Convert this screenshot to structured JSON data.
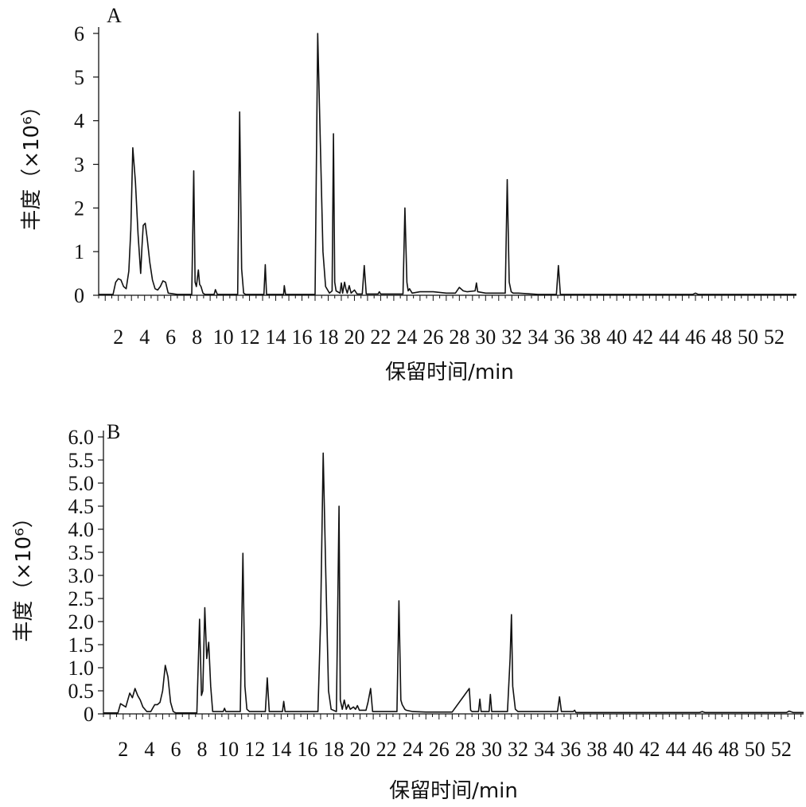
{
  "chart_data": [
    {
      "panel": "A",
      "type": "line",
      "xlabel": "保留时间/min",
      "ylabel": "丰度（×10⁶）",
      "ylim": [
        0,
        6
      ],
      "yticks": [
        0,
        1,
        2,
        3,
        4,
        5,
        6
      ],
      "ytick_labels": [
        "0",
        "1",
        "2",
        "3",
        "4",
        "5",
        "6"
      ],
      "xlim": [
        0.5,
        53.7
      ],
      "xticks": [
        2,
        4,
        6,
        8,
        10,
        12,
        14,
        16,
        18,
        20,
        22,
        24,
        26,
        28,
        30,
        32,
        34,
        36,
        38,
        40,
        42,
        44,
        46,
        48,
        50,
        52
      ],
      "xtick_labels": [
        "2",
        "4",
        "6",
        "8",
        "10",
        "12",
        "14",
        "16",
        "18",
        "20",
        "22",
        "24",
        "26",
        "28",
        "30",
        "32",
        "34",
        "36",
        "38",
        "40",
        "42",
        "44",
        "46",
        "48",
        "50",
        "52"
      ],
      "series": [
        {
          "x": [
            0.5,
            1.6,
            1.8,
            2.0,
            2.2,
            2.4,
            2.6,
            2.8,
            2.95,
            3.1,
            3.3,
            3.5,
            3.7,
            3.8,
            3.9,
            4.05,
            4.2,
            4.4,
            4.6,
            4.8,
            5.0,
            5.2,
            5.4,
            5.6,
            5.8,
            6.5,
            7.6,
            7.75,
            7.85,
            7.95,
            8.1,
            8.2,
            8.3,
            8.45,
            8.6,
            9.3,
            9.4,
            9.55,
            11.1,
            11.25,
            11.4,
            11.55,
            11.7,
            13.1,
            13.2,
            13.3,
            14.6,
            14.65,
            14.75,
            17.0,
            17.2,
            17.4,
            17.6,
            17.8,
            18.1,
            18.3,
            18.4,
            18.5,
            18.6,
            18.9,
            19.0,
            19.1,
            19.25,
            19.35,
            19.45,
            19.6,
            19.75,
            20.0,
            20.2,
            20.6,
            20.75,
            20.9,
            21.8,
            21.9,
            22.0,
            23.7,
            23.85,
            24.0,
            24.1,
            24.2,
            24.4,
            25.0,
            26.0,
            27.0,
            27.7,
            28.0,
            28.3,
            28.6,
            29.2,
            29.3,
            29.4,
            30.0,
            31.5,
            31.65,
            31.8,
            31.95,
            32.1,
            32.5,
            34.0,
            35.4,
            35.55,
            35.7,
            36.0,
            38.0,
            42.0,
            45.8,
            46.0,
            46.2,
            48.0,
            53.7
          ],
          "values": [
            0.02,
            0.02,
            0.3,
            0.38,
            0.35,
            0.2,
            0.15,
            0.55,
            1.5,
            3.38,
            2.6,
            1.4,
            0.5,
            1.1,
            1.6,
            1.65,
            1.3,
            0.75,
            0.35,
            0.15,
            0.12,
            0.2,
            0.33,
            0.3,
            0.05,
            0.02,
            0.02,
            2.85,
            0.3,
            0.2,
            0.58,
            0.25,
            0.2,
            0.05,
            0.02,
            0.02,
            0.13,
            0.02,
            0.02,
            4.2,
            0.6,
            0.05,
            0.02,
            0.02,
            0.7,
            0.02,
            0.02,
            0.22,
            0.02,
            0.02,
            6.0,
            3.5,
            1.0,
            0.2,
            0.05,
            0.1,
            3.7,
            0.3,
            0.1,
            0.05,
            0.28,
            0.05,
            0.3,
            0.15,
            0.05,
            0.22,
            0.05,
            0.12,
            0.03,
            0.03,
            0.68,
            0.03,
            0.03,
            0.08,
            0.03,
            0.03,
            2.0,
            0.3,
            0.1,
            0.15,
            0.05,
            0.08,
            0.08,
            0.05,
            0.05,
            0.18,
            0.1,
            0.08,
            0.1,
            0.28,
            0.08,
            0.05,
            0.05,
            2.65,
            0.3,
            0.08,
            0.05,
            0.05,
            0.02,
            0.02,
            0.68,
            0.02,
            0.02,
            0.02,
            0.02,
            0.02,
            0.05,
            0.02,
            0.02,
            0.02
          ]
        }
      ]
    },
    {
      "panel": "B",
      "type": "line",
      "xlabel": "保留时间/min",
      "ylabel": "丰度（×10⁶）",
      "ylim": [
        0,
        6
      ],
      "yticks": [
        0,
        0.5,
        1.0,
        1.5,
        2.0,
        2.5,
        3.0,
        3.5,
        4.0,
        4.5,
        5.0,
        5.5,
        6.0
      ],
      "ytick_labels": [
        "0",
        "0.5",
        "1.0",
        "1.5",
        "2.0",
        "2.5",
        "3.0",
        "3.5",
        "4.0",
        "4.5",
        "5.0",
        "5.5",
        "6.0"
      ],
      "xlim": [
        0.5,
        53.7
      ],
      "xticks": [
        2,
        4,
        6,
        8,
        10,
        12,
        14,
        16,
        18,
        20,
        22,
        24,
        26,
        28,
        30,
        32,
        34,
        36,
        38,
        40,
        42,
        44,
        46,
        48,
        50,
        52
      ],
      "xtick_labels": [
        "2",
        "4",
        "6",
        "8",
        "10",
        "12",
        "14",
        "16",
        "18",
        "20",
        "22",
        "24",
        "26",
        "28",
        "30",
        "32",
        "34",
        "36",
        "38",
        "40",
        "42",
        "44",
        "46",
        "48",
        "50",
        "52"
      ],
      "series": [
        {
          "x": [
            0.5,
            1.6,
            1.8,
            2.2,
            2.5,
            2.7,
            2.9,
            3.1,
            3.3,
            3.5,
            3.8,
            4.1,
            4.4,
            4.6,
            4.8,
            5.0,
            5.2,
            5.4,
            5.6,
            5.8,
            6.0,
            6.5,
            7.6,
            7.8,
            7.95,
            8.05,
            8.2,
            8.35,
            8.5,
            8.65,
            8.8,
            9.6,
            9.7,
            9.8,
            10.9,
            11.1,
            11.25,
            11.4,
            11.6,
            12.8,
            12.95,
            13.1,
            14.1,
            14.2,
            14.3,
            16.8,
            17.0,
            17.2,
            17.4,
            17.6,
            17.8,
            18.2,
            18.4,
            18.5,
            18.65,
            18.8,
            18.95,
            19.1,
            19.25,
            19.5,
            19.65,
            19.8,
            19.95,
            20.3,
            20.45,
            20.6,
            20.8,
            20.95,
            21.1,
            22.8,
            22.95,
            23.1,
            23.2,
            23.4,
            23.5,
            24.0,
            25.0,
            26.0,
            27.0,
            28.3,
            28.4,
            28.5,
            29.0,
            29.1,
            29.2,
            29.8,
            29.9,
            30.0,
            31.2,
            31.4,
            31.5,
            31.6,
            31.8,
            32.0,
            35.0,
            35.15,
            35.3,
            36.2,
            36.3,
            36.4,
            40.0,
            45.8,
            46.0,
            46.2,
            48.0,
            52.4,
            52.6,
            52.9,
            53.7
          ],
          "values": [
            0.02,
            0.02,
            0.22,
            0.15,
            0.45,
            0.35,
            0.55,
            0.4,
            0.3,
            0.15,
            0.05,
            0.05,
            0.2,
            0.2,
            0.25,
            0.5,
            1.05,
            0.8,
            0.25,
            0.05,
            0.02,
            0.02,
            0.02,
            2.05,
            0.4,
            0.5,
            2.3,
            1.2,
            1.55,
            0.6,
            0.05,
            0.05,
            0.12,
            0.05,
            0.05,
            3.48,
            0.6,
            0.1,
            0.05,
            0.05,
            0.78,
            0.05,
            0.05,
            0.27,
            0.05,
            0.05,
            2.0,
            5.65,
            3.0,
            0.5,
            0.1,
            0.05,
            4.5,
            0.3,
            0.1,
            0.3,
            0.1,
            0.2,
            0.1,
            0.15,
            0.1,
            0.18,
            0.08,
            0.08,
            0.08,
            0.25,
            0.55,
            0.05,
            0.05,
            0.05,
            2.45,
            0.3,
            0.2,
            0.1,
            0.08,
            0.05,
            0.04,
            0.04,
            0.04,
            0.55,
            0.08,
            0.05,
            0.05,
            0.32,
            0.05,
            0.05,
            0.42,
            0.05,
            0.05,
            1.2,
            2.15,
            0.6,
            0.1,
            0.05,
            0.05,
            0.37,
            0.05,
            0.05,
            0.08,
            0.03,
            0.03,
            0.03,
            0.05,
            0.03,
            0.03,
            0.03,
            0.06,
            0.03,
            0.03
          ]
        }
      ]
    }
  ]
}
